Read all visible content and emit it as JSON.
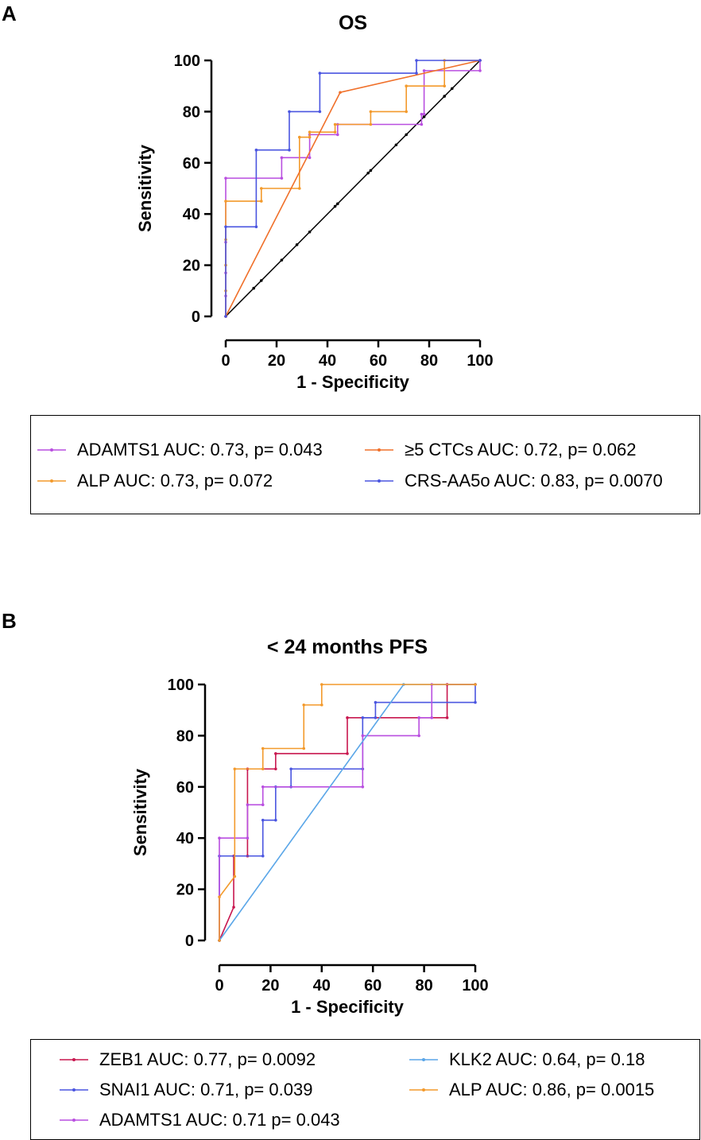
{
  "panels": [
    {
      "letter": "A"
    },
    {
      "letter": "B"
    }
  ],
  "chart_data": [
    {
      "type": "line",
      "title": "OS",
      "xlabel": "1 - Specificity",
      "ylabel": "Sensitivity",
      "xlim": [
        0,
        100
      ],
      "ylim": [
        0,
        100
      ],
      "xticks": [
        "0",
        "20",
        "40",
        "60",
        "80",
        "100"
      ],
      "yticks": [
        "0",
        "20",
        "40",
        "60",
        "80",
        "100"
      ],
      "reference_line": {
        "x": [
          0,
          100
        ],
        "y": [
          0,
          100
        ],
        "color": "#000000",
        "markers": [
          11,
          14,
          22,
          28,
          33,
          43,
          44,
          56,
          57,
          67,
          71,
          78,
          86,
          89
        ]
      },
      "series": [
        {
          "name": "ADAMTS1",
          "legend": "ADAMTS1 AUC: 0.73, p= 0.043",
          "color": "#B94FE0",
          "x": [
            0,
            0,
            0,
            0,
            0,
            22,
            22,
            33,
            33,
            44,
            44,
            77,
            77,
            78,
            78,
            100,
            100
          ],
          "y": [
            0,
            8,
            17,
            29,
            54,
            54,
            62,
            62,
            71,
            71,
            75,
            75,
            79,
            79,
            96,
            96,
            100
          ]
        },
        {
          "name": "ALP",
          "legend": "ALP AUC: 0.73, p= 0.072",
          "color": "#F39A2C",
          "x": [
            0,
            0,
            0,
            0,
            0,
            14,
            14,
            29,
            29,
            33,
            33,
            43,
            43,
            57,
            57,
            71,
            71,
            86,
            86,
            100
          ],
          "y": [
            0,
            10,
            20,
            30,
            45,
            45,
            50,
            50,
            70,
            70,
            72,
            72,
            75,
            75,
            80,
            80,
            90,
            90,
            100,
            100
          ]
        },
        {
          "name": "CTCs",
          "legend": "≥5 CTCs AUC: 0.72, p= 0.062",
          "color": "#F0702A",
          "x": [
            0,
            45,
            100
          ],
          "y": [
            0,
            87.5,
            100
          ]
        },
        {
          "name": "CRS-AA5o",
          "legend": "CRS-AA5o AUC: 0.83, p= 0.0070",
          "color": "#4A55E0",
          "x": [
            0,
            0,
            12,
            12,
            25,
            25,
            37,
            37,
            75,
            75,
            100,
            100
          ],
          "y": [
            0,
            35,
            35,
            65,
            65,
            80,
            80,
            95,
            95,
            100,
            100,
            100
          ]
        }
      ]
    },
    {
      "type": "line",
      "title": "< 24 months PFS",
      "xlabel": "1 - Specificity",
      "ylabel": "Sensitivity",
      "xlim": [
        0,
        100
      ],
      "ylim": [
        0,
        100
      ],
      "xticks": [
        "0",
        "20",
        "40",
        "60",
        "80",
        "100"
      ],
      "yticks": [
        "0",
        "20",
        "40",
        "60",
        "80",
        "100"
      ],
      "series": [
        {
          "name": "ZEB1",
          "legend": "ZEB1 AUC: 0.77, p= 0.0092",
          "color": "#C8174F",
          "x": [
            0,
            5.6,
            5.6,
            11,
            11,
            22,
            22,
            50,
            50,
            89,
            89,
            100
          ],
          "y": [
            0,
            13,
            33,
            33,
            67,
            67,
            73,
            73,
            87,
            87,
            100,
            100
          ]
        },
        {
          "name": "SNAI1",
          "legend": "SNAI1 AUC: 0.71, p= 0.039",
          "color": "#4A55E0",
          "x": [
            0,
            0,
            17,
            17,
            22,
            22,
            28,
            28,
            56,
            56,
            61,
            61,
            100,
            100
          ],
          "y": [
            0,
            33,
            33,
            47,
            47,
            60,
            60,
            67,
            67,
            87,
            87,
            93,
            93,
            100
          ]
        },
        {
          "name": "ADAMTS1",
          "legend": "ADAMTS1 AUC: 0.71 p= 0.043",
          "color": "#B94FE0",
          "x": [
            0,
            0,
            11,
            11,
            17,
            17,
            56,
            56,
            78,
            78,
            83,
            83,
            100
          ],
          "y": [
            0,
            40,
            40,
            53,
            53,
            60,
            60,
            80,
            80,
            87,
            87,
            100,
            100
          ]
        },
        {
          "name": "KLK2",
          "legend": "KLK2  AUC: 0.64, p= 0.18",
          "color": "#5AA6E8",
          "x": [
            0,
            72,
            100
          ],
          "y": [
            0,
            100,
            100
          ]
        },
        {
          "name": "ALP",
          "legend": "ALP AUC: 0.86, p= 0.0015",
          "color": "#F39A2C",
          "x": [
            0,
            0,
            6,
            6,
            17,
            17,
            33,
            33,
            40,
            40,
            100
          ],
          "y": [
            0,
            17,
            25,
            67,
            67,
            75,
            75,
            92,
            92,
            100,
            100
          ]
        }
      ]
    }
  ]
}
